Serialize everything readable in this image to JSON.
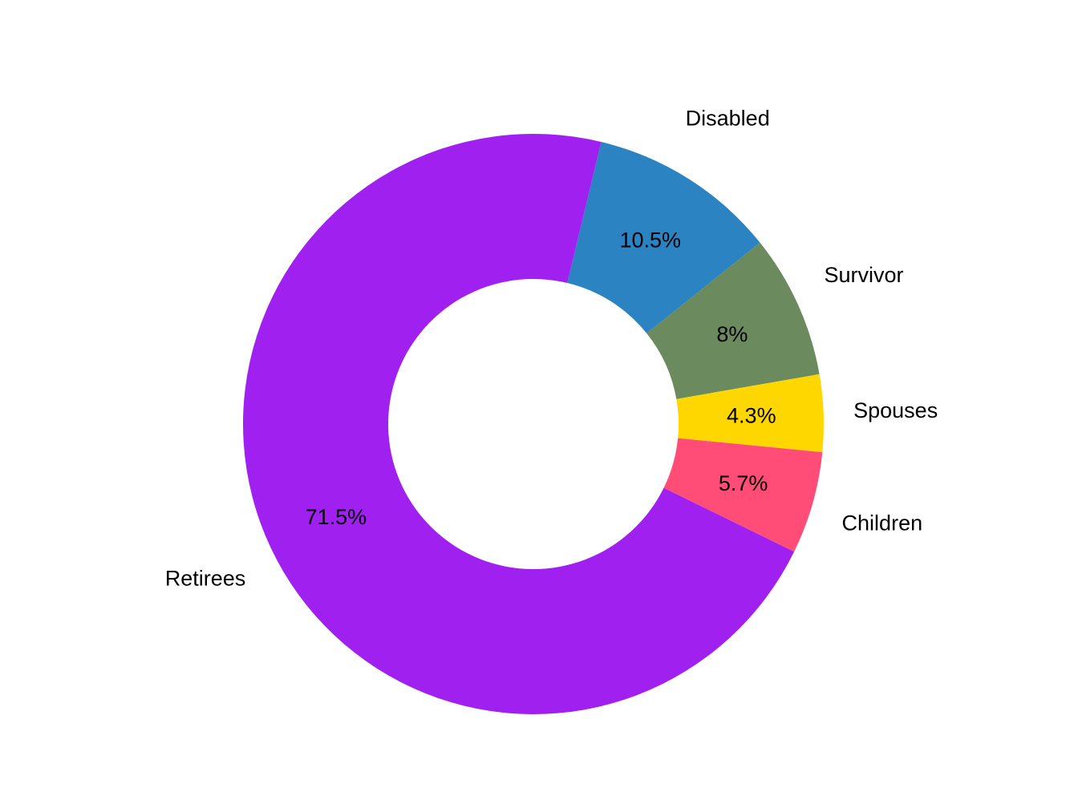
{
  "chart_data": {
    "type": "pie",
    "donut": true,
    "title": "",
    "categories": [
      "Disabled",
      "Survivor",
      "Spouses",
      "Children",
      "Retirees"
    ],
    "values": [
      10.5,
      8,
      4.3,
      5.7,
      71.5
    ],
    "percent_labels": [
      "10.5%",
      "8%",
      "4.3%",
      "5.7%",
      "71.5%"
    ],
    "colors": [
      "#2B83C1",
      "#6B8A5E",
      "#FFD700",
      "#FF4D77",
      "#A020F0"
    ],
    "legend": "none",
    "direction": "clockwise",
    "start": "Retirees/Disabled boundary near top"
  }
}
